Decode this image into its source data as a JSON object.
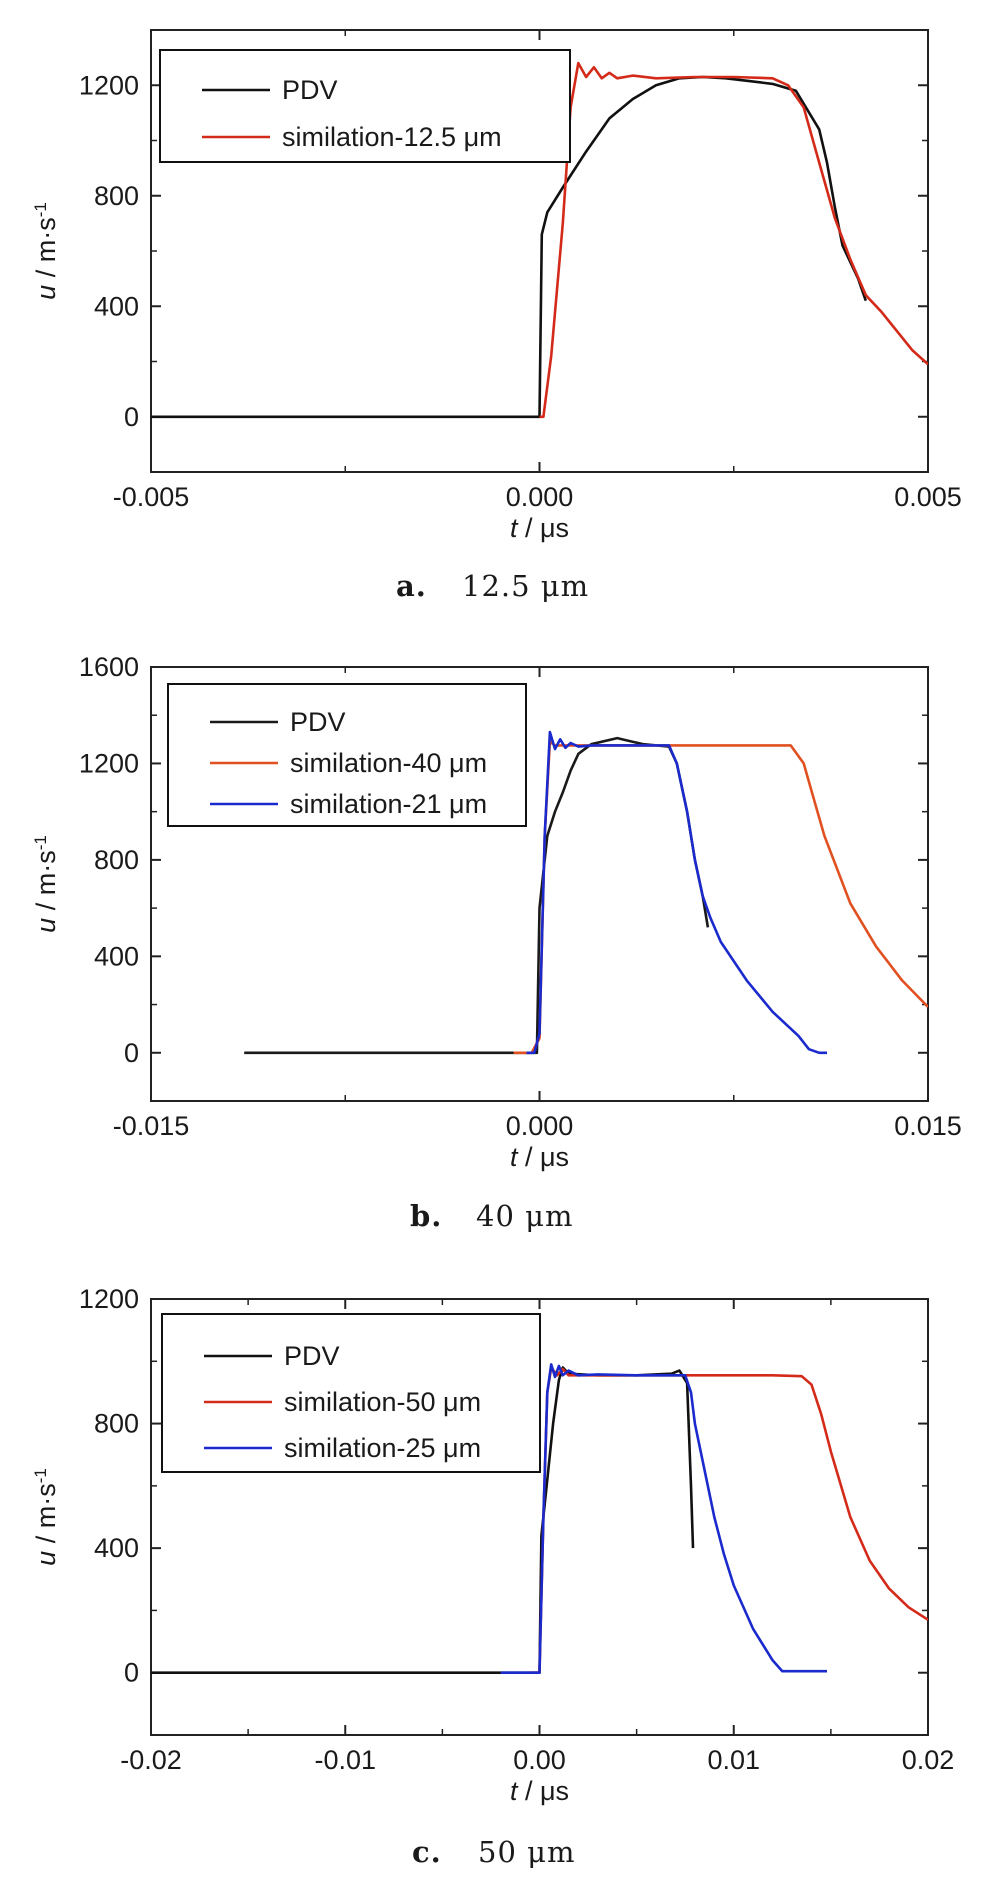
{
  "chart_data": [
    {
      "type": "line",
      "caption": {
        "letter": "a.",
        "text": "12.5 μm"
      },
      "xlabel": {
        "var": "t",
        "unit": " / μs"
      },
      "ylabel": {
        "var": "u",
        "unit": " / m·s",
        "sup": "-1"
      },
      "xlim": [
        -0.005,
        0.005
      ],
      "ylim": [
        -200,
        1400
      ],
      "xticks": [
        -0.005,
        0.0,
        0.005
      ],
      "xtick_labels": [
        "-0.005",
        "0.000",
        "0.005"
      ],
      "yticks": [
        0,
        400,
        800,
        1200
      ],
      "ytick_labels": [
        "0",
        "400",
        "800",
        "1200"
      ],
      "legend": "top-left",
      "series": [
        {
          "name": "PDV",
          "color": "#111111",
          "points": [
            [
              -0.005,
              0
            ],
            [
              0.0,
              0
            ],
            [
              3e-05,
              660
            ],
            [
              0.0001,
              740
            ],
            [
              0.0003,
              830
            ],
            [
              0.0006,
              960
            ],
            [
              0.0009,
              1080
            ],
            [
              0.0012,
              1150
            ],
            [
              0.0015,
              1200
            ],
            [
              0.0018,
              1225
            ],
            [
              0.0021,
              1230
            ],
            [
              0.0024,
              1225
            ],
            [
              0.0027,
              1215
            ],
            [
              0.003,
              1205
            ],
            [
              0.0033,
              1180
            ],
            [
              0.0036,
              1040
            ],
            [
              0.0037,
              920
            ],
            [
              0.0038,
              760
            ],
            [
              0.0039,
              620
            ],
            [
              0.0041,
              500
            ],
            [
              0.0042,
              420
            ]
          ]
        },
        {
          "name": "similation-12.5 μm",
          "color": "#d42a1a",
          "points": [
            [
              0.0,
              0
            ],
            [
              5e-05,
              0
            ],
            [
              0.00015,
              220
            ],
            [
              0.0003,
              700
            ],
            [
              0.0004,
              1120
            ],
            [
              0.0005,
              1280
            ],
            [
              0.0006,
              1230
            ],
            [
              0.0007,
              1265
            ],
            [
              0.0008,
              1225
            ],
            [
              0.0009,
              1245
            ],
            [
              0.001,
              1225
            ],
            [
              0.0012,
              1235
            ],
            [
              0.0015,
              1225
            ],
            [
              0.002,
              1230
            ],
            [
              0.0025,
              1230
            ],
            [
              0.003,
              1225
            ],
            [
              0.0032,
              1200
            ],
            [
              0.0034,
              1120
            ],
            [
              0.0036,
              920
            ],
            [
              0.0038,
              720
            ],
            [
              0.004,
              570
            ],
            [
              0.0042,
              440
            ],
            [
              0.0044,
              380
            ],
            [
              0.0046,
              310
            ],
            [
              0.0048,
              240
            ],
            [
              0.005,
              190
            ]
          ]
        }
      ]
    },
    {
      "type": "line",
      "caption": {
        "letter": "b.",
        "text": "40 μm"
      },
      "xlabel": {
        "var": "t",
        "unit": " / μs"
      },
      "ylabel": {
        "var": "u",
        "unit": " / m·s",
        "sup": "-1"
      },
      "xlim": [
        -0.015,
        0.015
      ],
      "ylim": [
        -200,
        1600
      ],
      "xticks": [
        -0.015,
        0.0,
        0.015
      ],
      "xtick_labels": [
        "-0.015",
        "0.000",
        "0.015"
      ],
      "yticks": [
        0,
        400,
        800,
        1200,
        1600
      ],
      "ytick_labels": [
        "0",
        "400",
        "800",
        "1200",
        "1600"
      ],
      "legend": "top-left",
      "series": [
        {
          "name": "PDV",
          "color": "#1a1a1a",
          "points": [
            [
              -0.0114,
              0
            ],
            [
              -0.0001,
              0
            ],
            [
              0.0,
              600
            ],
            [
              0.0003,
              900
            ],
            [
              0.0006,
              1000
            ],
            [
              0.0009,
              1080
            ],
            [
              0.0012,
              1170
            ],
            [
              0.0015,
              1240
            ],
            [
              0.002,
              1280
            ],
            [
              0.003,
              1305
            ],
            [
              0.004,
              1280
            ],
            [
              0.005,
              1270
            ],
            [
              0.0053,
              1200
            ],
            [
              0.0057,
              1000
            ],
            [
              0.006,
              800
            ],
            [
              0.0063,
              650
            ],
            [
              0.0065,
              520
            ]
          ]
        },
        {
          "name": "similation-40 μm",
          "color": "#e05020",
          "points": [
            [
              -0.001,
              0
            ],
            [
              -0.0003,
              0
            ],
            [
              0.0,
              60
            ],
            [
              0.0002,
              900
            ],
            [
              0.0004,
              1290
            ],
            [
              0.0006,
              1275
            ],
            [
              0.001,
              1275
            ],
            [
              0.003,
              1275
            ],
            [
              0.006,
              1275
            ],
            [
              0.008,
              1275
            ],
            [
              0.0097,
              1275
            ],
            [
              0.0102,
              1200
            ],
            [
              0.0106,
              1050
            ],
            [
              0.011,
              900
            ],
            [
              0.012,
              620
            ],
            [
              0.013,
              440
            ],
            [
              0.014,
              300
            ],
            [
              0.015,
              190
            ]
          ]
        },
        {
          "name": "similation-21 μm",
          "color": "#1a2acc",
          "points": [
            [
              -0.0005,
              0
            ],
            [
              -0.0002,
              0
            ],
            [
              0.0,
              80
            ],
            [
              0.0002,
              900
            ],
            [
              0.0004,
              1330
            ],
            [
              0.0006,
              1260
            ],
            [
              0.0008,
              1300
            ],
            [
              0.001,
              1265
            ],
            [
              0.0012,
              1285
            ],
            [
              0.0015,
              1270
            ],
            [
              0.002,
              1275
            ],
            [
              0.003,
              1275
            ],
            [
              0.005,
              1275
            ],
            [
              0.0053,
              1200
            ],
            [
              0.0057,
              1000
            ],
            [
              0.006,
              800
            ],
            [
              0.0063,
              650
            ],
            [
              0.0066,
              560
            ],
            [
              0.007,
              460
            ],
            [
              0.008,
              300
            ],
            [
              0.009,
              170
            ],
            [
              0.01,
              70
            ],
            [
              0.0104,
              15
            ],
            [
              0.0108,
              0
            ],
            [
              0.0111,
              0
            ]
          ]
        }
      ]
    },
    {
      "type": "line",
      "caption": {
        "letter": "c.",
        "text": "50 μm"
      },
      "xlabel": {
        "var": "t",
        "unit": " / μs"
      },
      "ylabel": {
        "var": "u",
        "unit": " / m·s",
        "sup": "-1"
      },
      "xlim": [
        -0.02,
        0.02
      ],
      "ylim": [
        -200,
        1200
      ],
      "xticks": [
        -0.02,
        -0.01,
        0.0,
        0.01,
        0.02
      ],
      "xtick_labels": [
        "-0.02",
        "-0.01",
        "0.00",
        "0.01",
        "0.02"
      ],
      "yticks": [
        0,
        400,
        800,
        1200
      ],
      "ytick_labels": [
        "0",
        "400",
        "800",
        "1200"
      ],
      "legend": "top-left",
      "series": [
        {
          "name": "PDV",
          "color": "#111111",
          "points": [
            [
              -0.02,
              0
            ],
            [
              0.0,
              0
            ],
            [
              0.0001,
              440
            ],
            [
              0.0004,
              620
            ],
            [
              0.0007,
              800
            ],
            [
              0.001,
              940
            ],
            [
              0.0012,
              980
            ],
            [
              0.0015,
              960
            ],
            [
              0.003,
              955
            ],
            [
              0.005,
              955
            ],
            [
              0.0068,
              960
            ],
            [
              0.0072,
              970
            ],
            [
              0.0076,
              930
            ],
            [
              0.0078,
              600
            ],
            [
              0.0079,
              400
            ]
          ]
        },
        {
          "name": "similation-50 μm",
          "color": "#d42a1a",
          "points": [
            [
              -0.0005,
              0
            ],
            [
              0.0,
              0
            ],
            [
              0.0002,
              500
            ],
            [
              0.0004,
              900
            ],
            [
              0.0006,
              980
            ],
            [
              0.0009,
              955
            ],
            [
              0.0012,
              975
            ],
            [
              0.0015,
              955
            ],
            [
              0.003,
              955
            ],
            [
              0.006,
              955
            ],
            [
              0.009,
              955
            ],
            [
              0.012,
              955
            ],
            [
              0.0135,
              952
            ],
            [
              0.014,
              925
            ],
            [
              0.0145,
              830
            ],
            [
              0.015,
              710
            ],
            [
              0.016,
              500
            ],
            [
              0.017,
              360
            ],
            [
              0.018,
              270
            ],
            [
              0.019,
              210
            ],
            [
              0.02,
              170
            ]
          ]
        },
        {
          "name": "similation-25 μm",
          "color": "#1a2acc",
          "points": [
            [
              -0.002,
              0
            ],
            [
              0.0,
              0
            ],
            [
              0.0002,
              500
            ],
            [
              0.0004,
              900
            ],
            [
              0.0006,
              990
            ],
            [
              0.0008,
              950
            ],
            [
              0.001,
              985
            ],
            [
              0.0012,
              955
            ],
            [
              0.0015,
              970
            ],
            [
              0.002,
              955
            ],
            [
              0.003,
              958
            ],
            [
              0.005,
              955
            ],
            [
              0.0075,
              955
            ],
            [
              0.0078,
              900
            ],
            [
              0.008,
              800
            ],
            [
              0.0085,
              650
            ],
            [
              0.009,
              500
            ],
            [
              0.0095,
              380
            ],
            [
              0.01,
              280
            ],
            [
              0.011,
              140
            ],
            [
              0.012,
              40
            ],
            [
              0.0125,
              5
            ],
            [
              0.013,
              5
            ],
            [
              0.0148,
              5
            ]
          ]
        }
      ]
    }
  ]
}
